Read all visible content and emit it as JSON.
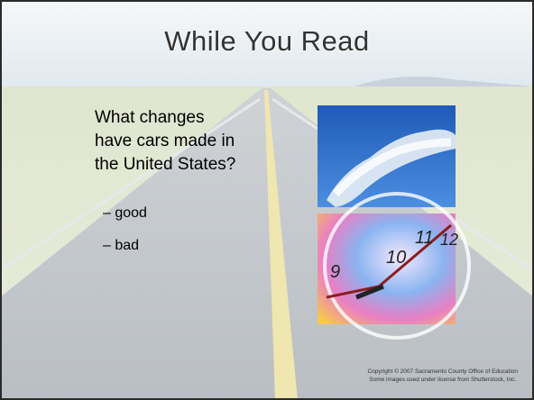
{
  "slide": {
    "title": "While You Read",
    "body_lines": [
      "What changes",
      "have cars made in",
      "the United States?"
    ],
    "bullets": [
      "– good",
      "– bad"
    ],
    "copyright": [
      "Copyright © 2007 Sacramento County Office of Education",
      "Some images used under license from Shutterstock, Inc."
    ]
  }
}
